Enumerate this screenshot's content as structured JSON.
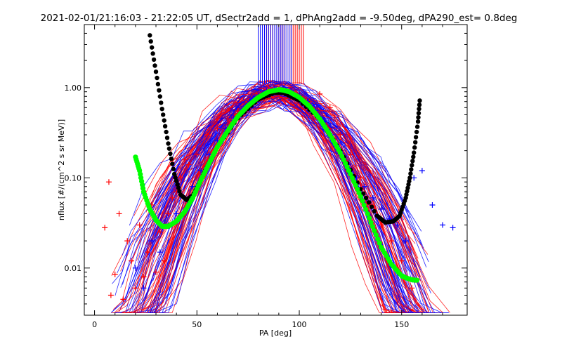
{
  "chart_data": {
    "type": "scatter",
    "title": "2021-02-01/21:16:03 - 21:22:05 UT, dSectr2add = 1, dPhAng2add = -9.50deg, dPA290_est=   0.8deg",
    "xlabel": "PA [deg]",
    "ylabel": "nflux [#/(cm^2 s sr MeV)]",
    "xlim": [
      -5,
      182
    ],
    "ylim": [
      0.003,
      5.0
    ],
    "yscale": "log",
    "grid": false,
    "x_ticks": [
      {
        "value": 0,
        "label": "0"
      },
      {
        "value": 50,
        "label": "50"
      },
      {
        "value": 100,
        "label": "100"
      },
      {
        "value": 150,
        "label": "150"
      }
    ],
    "y_ticks": [
      {
        "value": 0.01,
        "label": "0.01"
      },
      {
        "value": 0.1,
        "label": "0.10"
      },
      {
        "value": 1.0,
        "label": "1.00"
      }
    ],
    "colors": {
      "red_series": "#ff0000",
      "blue_series": "#0000ff",
      "black_fit": "#000000",
      "green_fit": "#00ff00"
    },
    "black_fit": {
      "x": [
        27,
        30,
        33,
        36,
        39,
        42,
        45,
        48,
        51,
        54,
        60,
        70,
        80,
        88,
        92,
        100,
        110,
        120,
        130,
        138,
        142,
        146,
        149,
        152,
        154,
        156,
        158,
        159
      ],
      "y": [
        3.8,
        1.5,
        0.58,
        0.24,
        0.11,
        0.065,
        0.057,
        0.064,
        0.085,
        0.12,
        0.22,
        0.46,
        0.74,
        0.88,
        0.88,
        0.72,
        0.45,
        0.2,
        0.075,
        0.038,
        0.032,
        0.033,
        0.038,
        0.06,
        0.1,
        0.19,
        0.42,
        0.8
      ]
    },
    "green_fit": {
      "x": [
        20,
        22,
        24,
        27,
        30,
        33,
        36,
        40,
        44,
        48,
        52,
        56,
        60,
        65,
        70,
        75,
        80,
        85,
        90,
        92,
        95,
        100,
        105,
        110,
        115,
        120,
        125,
        130,
        135,
        140,
        145,
        150,
        152,
        155,
        158
      ],
      "y": [
        0.17,
        0.12,
        0.07,
        0.045,
        0.034,
        0.029,
        0.029,
        0.033,
        0.042,
        0.06,
        0.095,
        0.145,
        0.22,
        0.33,
        0.48,
        0.63,
        0.78,
        0.9,
        0.95,
        0.94,
        0.9,
        0.78,
        0.62,
        0.45,
        0.3,
        0.19,
        0.11,
        0.062,
        0.032,
        0.017,
        0.011,
        0.0082,
        0.0078,
        0.0074,
        0.0073
      ]
    },
    "vertical_markers": {
      "y_from": 1.1,
      "red_x": [
        83,
        84,
        85,
        86,
        87,
        88,
        89,
        90,
        91,
        92,
        93,
        94,
        95,
        96,
        97,
        98,
        99,
        100,
        101,
        102
      ],
      "blue_x": [
        80,
        81,
        82,
        83,
        84,
        85,
        86,
        87,
        88,
        89,
        90,
        91,
        92,
        93,
        94,
        95,
        96
      ]
    },
    "scatter_series": [
      {
        "color": "red",
        "x": [
          5,
          7,
          8,
          10,
          12,
          14,
          16,
          18,
          20,
          22,
          24,
          26,
          28,
          30,
          32,
          34,
          36,
          38,
          40,
          42,
          44,
          46,
          50,
          55,
          60,
          65,
          70,
          75,
          80,
          85,
          90,
          95,
          100,
          105,
          110,
          115,
          120,
          125,
          130,
          135,
          140,
          145,
          150,
          155
        ],
        "y": [
          0.028,
          0.09,
          0.005,
          0.0085,
          0.04,
          0.0045,
          0.02,
          0.012,
          0.006,
          0.03,
          0.008,
          0.015,
          0.05,
          0.009,
          0.025,
          0.012,
          0.04,
          0.06,
          0.07,
          0.1,
          0.16,
          0.14,
          0.18,
          0.3,
          0.35,
          0.45,
          0.55,
          0.7,
          0.8,
          0.95,
          0.85,
          0.9,
          0.8,
          0.7,
          0.85,
          0.6,
          0.3,
          0.18,
          0.1,
          0.05,
          0.03,
          0.02,
          0.012,
          0.006
        ]
      },
      {
        "color": "blue",
        "x": [
          20,
          24,
          28,
          32,
          36,
          40,
          44,
          48,
          52,
          56,
          60,
          64,
          68,
          72,
          76,
          80,
          84,
          88,
          92,
          96,
          100,
          104,
          108,
          112,
          116,
          120,
          124,
          128,
          132,
          136,
          140,
          144,
          148,
          152,
          156,
          160,
          165,
          170,
          175
        ],
        "y": [
          0.01,
          0.006,
          0.02,
          0.015,
          0.03,
          0.04,
          0.06,
          0.08,
          0.12,
          0.18,
          0.26,
          0.35,
          0.46,
          0.58,
          0.7,
          0.82,
          0.92,
          0.97,
          0.97,
          0.92,
          0.82,
          0.7,
          0.56,
          0.42,
          0.3,
          0.2,
          0.14,
          0.1,
          0.08,
          0.06,
          0.045,
          0.035,
          0.03,
          0.02,
          0.1,
          0.12,
          0.05,
          0.03,
          0.028
        ]
      }
    ]
  }
}
